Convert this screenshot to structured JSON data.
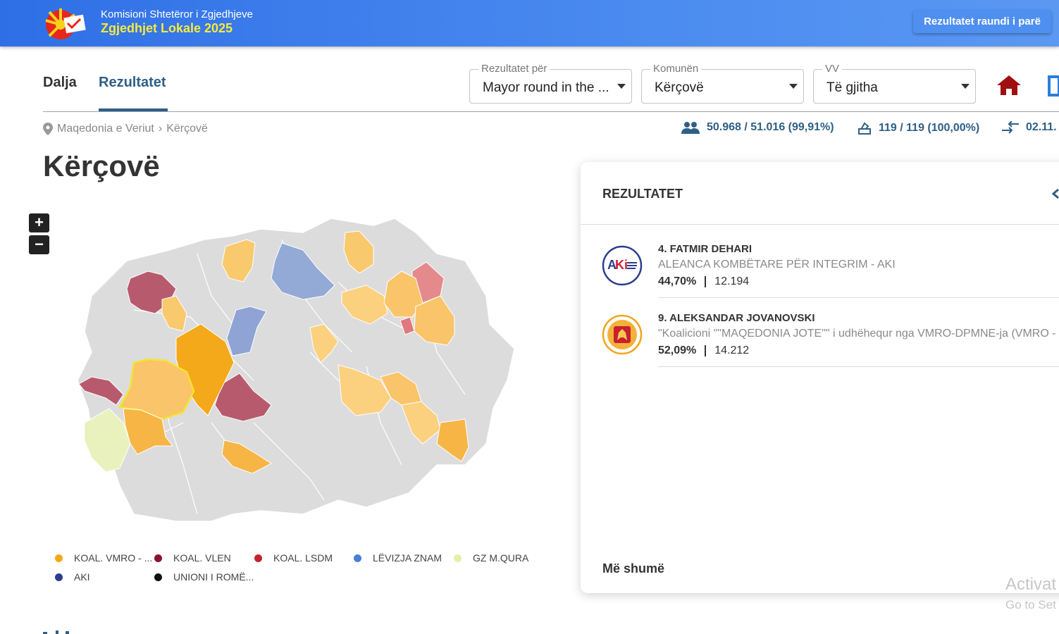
{
  "header": {
    "org": "Komisioni Shtetëror i Zgjedhjeve",
    "election": "Zgjedhjet Lokale 2025",
    "round_button": "Rezultatet raundi i parë"
  },
  "tabs": [
    {
      "label": "Dalja",
      "active": false
    },
    {
      "label": "Rezultatet",
      "active": true
    }
  ],
  "filters": {
    "results_for": {
      "label": "Rezultatet për",
      "value": "Mayor round in the ..."
    },
    "municipality": {
      "label": "Komunën",
      "value": "Kërçovë"
    },
    "vv": {
      "label": "VV",
      "value": "Të gjitha"
    }
  },
  "breadcrumb": {
    "root": "Maqedonia e Veriut",
    "current": "Kërçovë"
  },
  "stats": {
    "voters": "50.968 / 51.016 (99,91%)",
    "polling_stations": "119 / 119 (100,00%)",
    "updated": "02.11."
  },
  "page_title": "Kërçovë",
  "zoom": {
    "in": "+",
    "out": "−"
  },
  "legend": [
    {
      "label": "KOAL. VMRO - ...",
      "color": "#f4a91a"
    },
    {
      "label": "KOAL. VLEN",
      "color": "#8a1230"
    },
    {
      "label": "KOAL. LSDM",
      "color": "#c8202e"
    },
    {
      "label": "LËVIZJA ZNAM",
      "color": "#4a7fd4"
    },
    {
      "label": "GZ M.QURA",
      "color": "#e4f0a8"
    },
    {
      "label": "AKI",
      "color": "#2c3d8f"
    },
    {
      "label": "UNIONI I ROMË...",
      "color": "#111111"
    }
  ],
  "results": {
    "title": "REZULTATET",
    "candidates": [
      {
        "name": "4. FATMIR DEHARI",
        "party": "ALEANCA KOMBËTARE PËR INTEGRIM - AKI",
        "percent": "44,70%",
        "votes": "12.194",
        "logo": "AKi"
      },
      {
        "name": "9. ALEKSANDAR JOVANOVSKI",
        "party": "\"Koalicioni \"\"MAQEDONIA JOTE\"\" i udhëhequr nga VMRO-DPMNE-ja (VMRO - Pa",
        "percent": "52,09%",
        "votes": "14.212",
        "logo": "vmro-lion-icon"
      }
    ],
    "more": "Më shumë"
  },
  "watermark": {
    "line1": "Activat",
    "line2": "Go to Set"
  },
  "colors": {
    "header": "#3b7ced",
    "accent": "#2e5f86",
    "home": "#a01010",
    "map_default": "#dcdcdc"
  }
}
